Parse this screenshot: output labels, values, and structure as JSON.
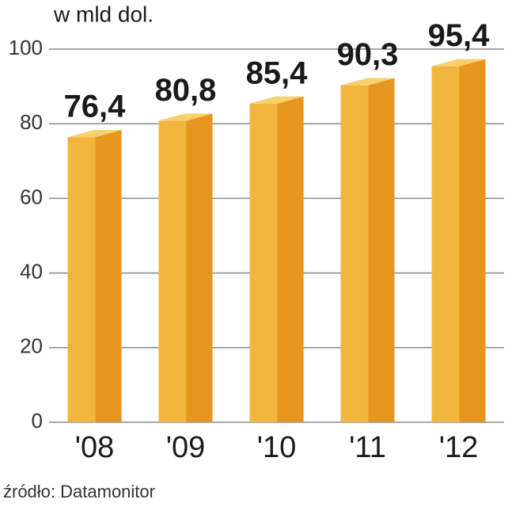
{
  "chart_data": {
    "type": "bar3d",
    "title": "w mld dol.",
    "categories": [
      "'08",
      "'09",
      "'10",
      "'11",
      "'12"
    ],
    "values": [
      76.4,
      80.8,
      85.4,
      90.3,
      95.4
    ],
    "value_labels": [
      "76,4",
      "80,8",
      "85,4",
      "90,3",
      "95,4"
    ],
    "colors": {
      "front": "#f2b53e",
      "side": "#e6951f",
      "top": "#f8d06c"
    },
    "ylim": [
      0,
      100
    ],
    "yticks": [
      0,
      20,
      40,
      60,
      80,
      100
    ],
    "grid": true,
    "source": "źródło: Datamonitor"
  }
}
